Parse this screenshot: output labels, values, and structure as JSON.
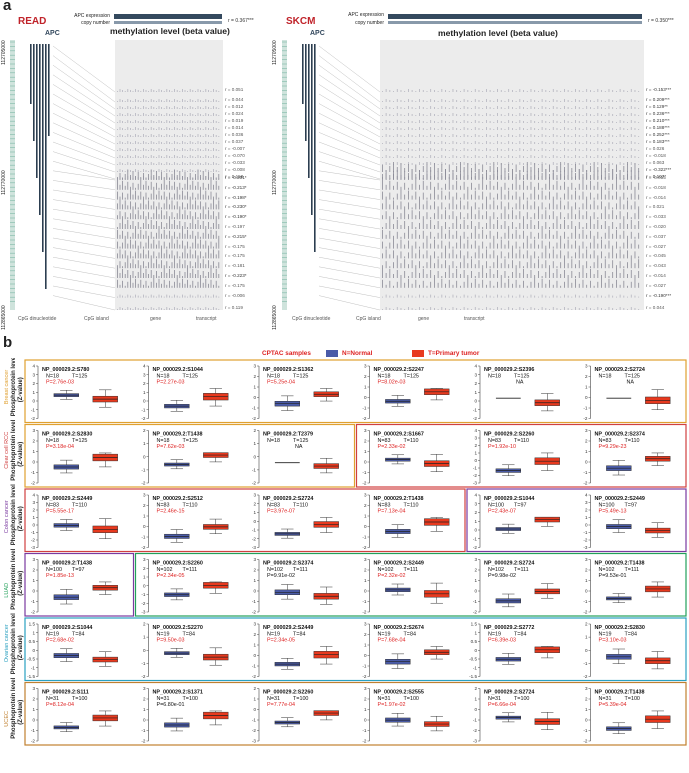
{
  "panel_a": {
    "letter": "a",
    "read": {
      "title": "READ",
      "gene": "APC",
      "track_labels": [
        "APC expression",
        "copy number"
      ],
      "corr_header": "r = 0.367***",
      "heading": "methylation level (beta value)",
      "coords": [
        "112705000",
        "112770000",
        "112865000"
      ],
      "legend": [
        "CpG dinucleotide",
        "CpG island",
        "gene",
        "transcript"
      ],
      "r_values": [
        "r = 0.051",
        "r = 0.044",
        "r = 0.012",
        "r = 0.024",
        "r = 0.019",
        "r = 0.014",
        "r = 0.036",
        "r = 0.037",
        "r = -0.007",
        "r = -0.070",
        "r = -0.033",
        "r = -0.008",
        "r = 0.158",
        "r = -0.201*",
        "r = -0.213*",
        "r = -0.198*",
        "r = -0.230*",
        "r = -0.190*",
        "r = -0.197",
        "r = -0.215*",
        "r = -0.175",
        "r = -0.175",
        "r = -0.181",
        "r = -0.223*",
        "r = -0.175",
        "r = -0.006",
        "r = 0.119"
      ]
    },
    "skcm": {
      "title": "SKCM",
      "gene": "APC",
      "track_labels": [
        "APC expression",
        "copy number"
      ],
      "corr_header": "r = 0.350***",
      "heading": "methylation level (beta value)",
      "coords": [
        "112705000",
        "112770000",
        "112865000"
      ],
      "legend": [
        "CpG dinucleotide",
        "CpG island",
        "gene",
        "transcript"
      ],
      "r_values": [
        "r = -0.153***",
        "r = 0.209***",
        "r = 0.129**",
        "r = 0.236***",
        "r = 0.210***",
        "r = 0.188***",
        "r = 0.252***",
        "r = 0.183***",
        "r = 0.026",
        "r = -0.018",
        "r = 0.063",
        "r = -0.322***",
        "r = 0.107*",
        "r = -0.015",
        "r = -0.018",
        "r = -0.014",
        "r = 0.021",
        "r = -0.033",
        "r = -0.020",
        "r = -0.037",
        "r = -0.027",
        "r = -0.045",
        "r = -0.043",
        "r = -0.014",
        "r = -0.027",
        "r = -0.190***",
        "r = 0.044"
      ]
    }
  },
  "panel_b": {
    "letter": "b",
    "legend": {
      "title": "CPTAC samples",
      "normal": "N=Normal",
      "tumor": "T=Primary tumor",
      "normal_color": "#4a5ba8",
      "tumor_color": "#e8391e"
    },
    "ylabel": "Phosphoprotein level",
    "ylabel2": "(Z-value)",
    "row_labels": [
      "Breast cancer",
      "Clear cell RCC",
      "Colon cancer",
      "LUAD",
      "Ovarian cancer",
      "UCEC"
    ],
    "row_label_colors": [
      "#e0a030",
      "#d04040",
      "#7a3aa0",
      "#22a05a",
      "#2aa0c0",
      "#c08030"
    ],
    "cells": [
      [
        {
          "site": "NP_000029.2:S780",
          "n": "N=18",
          "t": "T=125",
          "p": "P=2.76e-03",
          "p_red": true,
          "ticks": [
            "4",
            "3",
            "2",
            "1",
            "0",
            "-1",
            "-2"
          ]
        },
        {
          "site": "NP_000029.2:S1044",
          "n": "N=18",
          "t": "T=125",
          "p": "P=2.27e-03",
          "p_red": true,
          "ticks": [
            "4",
            "3",
            "2",
            "1",
            "0",
            "-1",
            "-2"
          ]
        },
        {
          "site": "NP_000029.2:S1362",
          "n": "N=18",
          "t": "T=125",
          "p": "P=5.25e-04",
          "p_red": true,
          "ticks": [
            "3",
            "2",
            "1",
            "0",
            "-1",
            "-2"
          ]
        },
        {
          "site": "NP_000029.2:S2247",
          "n": "N=18",
          "t": "T=125",
          "p": "P=8.02e-03",
          "p_red": true,
          "ticks": [
            "3",
            "2",
            "1",
            "0",
            "-1",
            "-2"
          ]
        },
        {
          "site": "NP_000029.2:S2396",
          "n": "N=18",
          "t": "T=125",
          "p": "NA",
          "p_red": false,
          "ticks": [
            "4",
            "3",
            "2",
            "1",
            "0",
            "-1",
            "-2"
          ]
        },
        {
          "site": "NP_000029.2:S2724",
          "n": "N=18",
          "t": "T=125",
          "p": "NA",
          "p_red": false,
          "ticks": [
            "3",
            "2",
            "1",
            "0",
            "-1",
            "-2"
          ]
        }
      ],
      [
        {
          "site": "NP_000029.2:S2830",
          "n": "N=18",
          "t": "T=125",
          "p": "P=3.18e-04",
          "p_red": true,
          "ticks": [
            "3",
            "2",
            "1",
            "0",
            "-1",
            "-2"
          ]
        },
        {
          "site": "NP_000029.2:T1438",
          "n": "N=18",
          "t": "T=125",
          "p": "P=7.62e-03",
          "p_red": true,
          "ticks": [
            "2",
            "1",
            "0",
            "-1",
            "-2"
          ]
        },
        {
          "site": "NP_000029.2:T2379",
          "n": "N=18",
          "t": "T=125",
          "p": "NA",
          "p_red": false,
          "ticks": [
            "2",
            "1",
            "0",
            "-1",
            "-2"
          ]
        },
        {
          "site": "NP_000029.2:S1667",
          "n": "N=83",
          "t": "T=110",
          "p": "P=2.33e-02",
          "p_red": true,
          "ticks": [
            "3",
            "2",
            "1",
            "0",
            "-1",
            "-2"
          ]
        },
        {
          "site": "NP_000029.2:S2260",
          "n": "N=83",
          "t": "T=110",
          "p": "P=1.92e-10",
          "p_red": true,
          "ticks": [
            "4",
            "3",
            "2",
            "1",
            "0",
            "-1",
            "-2",
            "-3"
          ]
        },
        {
          "site": "NP_000029.2:S2374",
          "n": "N=83",
          "t": "T=110",
          "p": "P=9.29e-23",
          "p_red": true,
          "ticks": [
            "3",
            "2",
            "1",
            "0",
            "-1",
            "-2"
          ]
        }
      ],
      [
        {
          "site": "NP_000029.2:S2449",
          "n": "N=83",
          "t": "T=110",
          "p": "P=5.55e-17",
          "p_red": true,
          "ticks": [
            "4",
            "3",
            "2",
            "1",
            "0",
            "-1",
            "-2",
            "-3"
          ]
        },
        {
          "site": "NP_000029.2:S2512",
          "n": "N=83",
          "t": "T=110",
          "p": "P=2.46e-15",
          "p_red": true,
          "ticks": [
            "3",
            "2",
            "1",
            "0",
            "-1",
            "-2"
          ]
        },
        {
          "site": "NP_000029.2:S2724",
          "n": "N=83",
          "t": "T=110",
          "p": "P=3.97e-07",
          "p_red": true,
          "ticks": [
            "3",
            "2",
            "1",
            "0",
            "-1",
            "-2",
            "-3"
          ]
        },
        {
          "site": "NP_000029.2:T1438",
          "n": "N=83",
          "t": "T=110",
          "p": "P=7.13e-04",
          "p_red": true,
          "ticks": [
            "3",
            "2",
            "1",
            "0",
            "-1",
            "-2"
          ]
        },
        {
          "site": "NP_000029.2:S1044",
          "n": "N=100",
          "t": "T=97",
          "p": "P=2.43e-07",
          "p_red": true,
          "ticks": [
            "4",
            "3",
            "2",
            "1",
            "0",
            "-1",
            "-2"
          ]
        },
        {
          "site": "NP_000029.2:S2449",
          "n": "N=100",
          "t": "T=97",
          "p": "P=5.49e-13",
          "p_red": true,
          "ticks": [
            "4",
            "3",
            "2",
            "1",
            "0",
            "-1",
            "-2",
            "-3"
          ]
        }
      ],
      [
        {
          "site": "NP_000029.2:T1438",
          "n": "N=100",
          "t": "T=97",
          "p": "P=1.85e-13",
          "p_red": true,
          "ticks": [
            "3",
            "2",
            "1",
            "0",
            "-1",
            "-2"
          ]
        },
        {
          "site": "NP_000029.2:S2260",
          "n": "N=102",
          "t": "T=111",
          "p": "P=2.34e-05",
          "p_red": true,
          "ticks": [
            "3",
            "2",
            "1",
            "0",
            "-1",
            "-2",
            "-3"
          ]
        },
        {
          "site": "NP_000029.2:S2374",
          "n": "N=102",
          "t": "T=111",
          "p": "P=9.91e-02",
          "p_red": false,
          "ticks": [
            "3",
            "2",
            "1",
            "0",
            "-1",
            "-2"
          ]
        },
        {
          "site": "NP_000029.2:S2449",
          "n": "N=102",
          "t": "T=111",
          "p": "P=2.32e-02",
          "p_red": true,
          "ticks": [
            "3",
            "2",
            "1",
            "0",
            "-1",
            "-2"
          ]
        },
        {
          "site": "NP_000029.2:S2724",
          "n": "N=102",
          "t": "T=111",
          "p": "P=9.98e-02",
          "p_red": false,
          "ticks": [
            "3",
            "2",
            "1",
            "0",
            "-1",
            "-2"
          ]
        },
        {
          "site": "NP_000029.2:T1438",
          "n": "N=102",
          "t": "T=111",
          "p": "P=9.53e-01",
          "p_red": false,
          "ticks": [
            "3",
            "2",
            "1",
            "0",
            "-1",
            "-2"
          ]
        }
      ],
      [
        {
          "site": "NP_000029.2:S1044",
          "n": "N=19",
          "t": "T=84",
          "p": "P=2.68e-02",
          "p_red": true,
          "ticks": [
            "1.5",
            "1",
            "0.5",
            "0",
            "-0.5",
            "-1",
            "-1.5"
          ]
        },
        {
          "site": "NP_000029.2:S2270",
          "n": "N=19",
          "t": "T=84",
          "p": "P=9.50e-03",
          "p_red": true,
          "ticks": [
            "2",
            "1",
            "0",
            "-1",
            "-2"
          ]
        },
        {
          "site": "NP_000029.2:S2449",
          "n": "N=19",
          "t": "T=84",
          "p": "P=2.34e-05",
          "p_red": true,
          "ticks": [
            "3",
            "2",
            "1",
            "0",
            "-1",
            "-2"
          ]
        },
        {
          "site": "NP_000029.2:S2674",
          "n": "N=19",
          "t": "T=84",
          "p": "P=7.68e-04",
          "p_red": true,
          "ticks": [
            "3",
            "2",
            "1",
            "0",
            "-1",
            "-2"
          ]
        },
        {
          "site": "NP_000029.2:S2772",
          "n": "N=19",
          "t": "T=84",
          "p": "P=6.39e-03",
          "p_red": true,
          "ticks": [
            "1.5",
            "1",
            "0.5",
            "0",
            "-0.5",
            "-1",
            "-1.5"
          ]
        },
        {
          "site": "NP_000029.2:S2830",
          "n": "N=19",
          "t": "T=84",
          "p": "P=3.10e-03",
          "p_red": true,
          "ticks": [
            "2",
            "1",
            "0",
            "-1",
            "-2"
          ]
        }
      ],
      [
        {
          "site": "NP_000029.2:S111",
          "n": "N=31",
          "t": "T=100",
          "p": "P=8.12e-04",
          "p_red": true,
          "ticks": [
            "3",
            "2",
            "1",
            "0",
            "-1",
            "-2"
          ]
        },
        {
          "site": "NP_000029.2:S1371",
          "n": "N=31",
          "t": "T=100",
          "p": "P=6.80e-01",
          "p_red": false,
          "ticks": [
            "3",
            "2",
            "1",
            "0",
            "-1",
            "-2"
          ]
        },
        {
          "site": "NP_000029.2:S2260",
          "n": "N=31",
          "t": "T=100",
          "p": "P=7.77e-04",
          "p_red": true,
          "ticks": [
            "2",
            "1",
            "0",
            "-1",
            "-2",
            "-3"
          ]
        },
        {
          "site": "NP_000029.2:S2555",
          "n": "N=31",
          "t": "T=100",
          "p": "P=1.97e-02",
          "p_red": true,
          "ticks": [
            "3",
            "2",
            "1",
            "0",
            "-1",
            "-2"
          ]
        },
        {
          "site": "NP_000029.2:S2724",
          "n": "N=31",
          "t": "T=100",
          "p": "P=6.66e-04",
          "p_red": true,
          "ticks": [
            "2",
            "1",
            "0",
            "-1",
            "-2",
            "-3"
          ]
        },
        {
          "site": "NP_000029.2:T1438",
          "n": "N=31",
          "t": "T=100",
          "p": "P=5.39e-04",
          "p_red": true,
          "ticks": [
            "3",
            "2",
            "1",
            "0",
            "-1",
            "-2"
          ]
        }
      ]
    ]
  }
}
